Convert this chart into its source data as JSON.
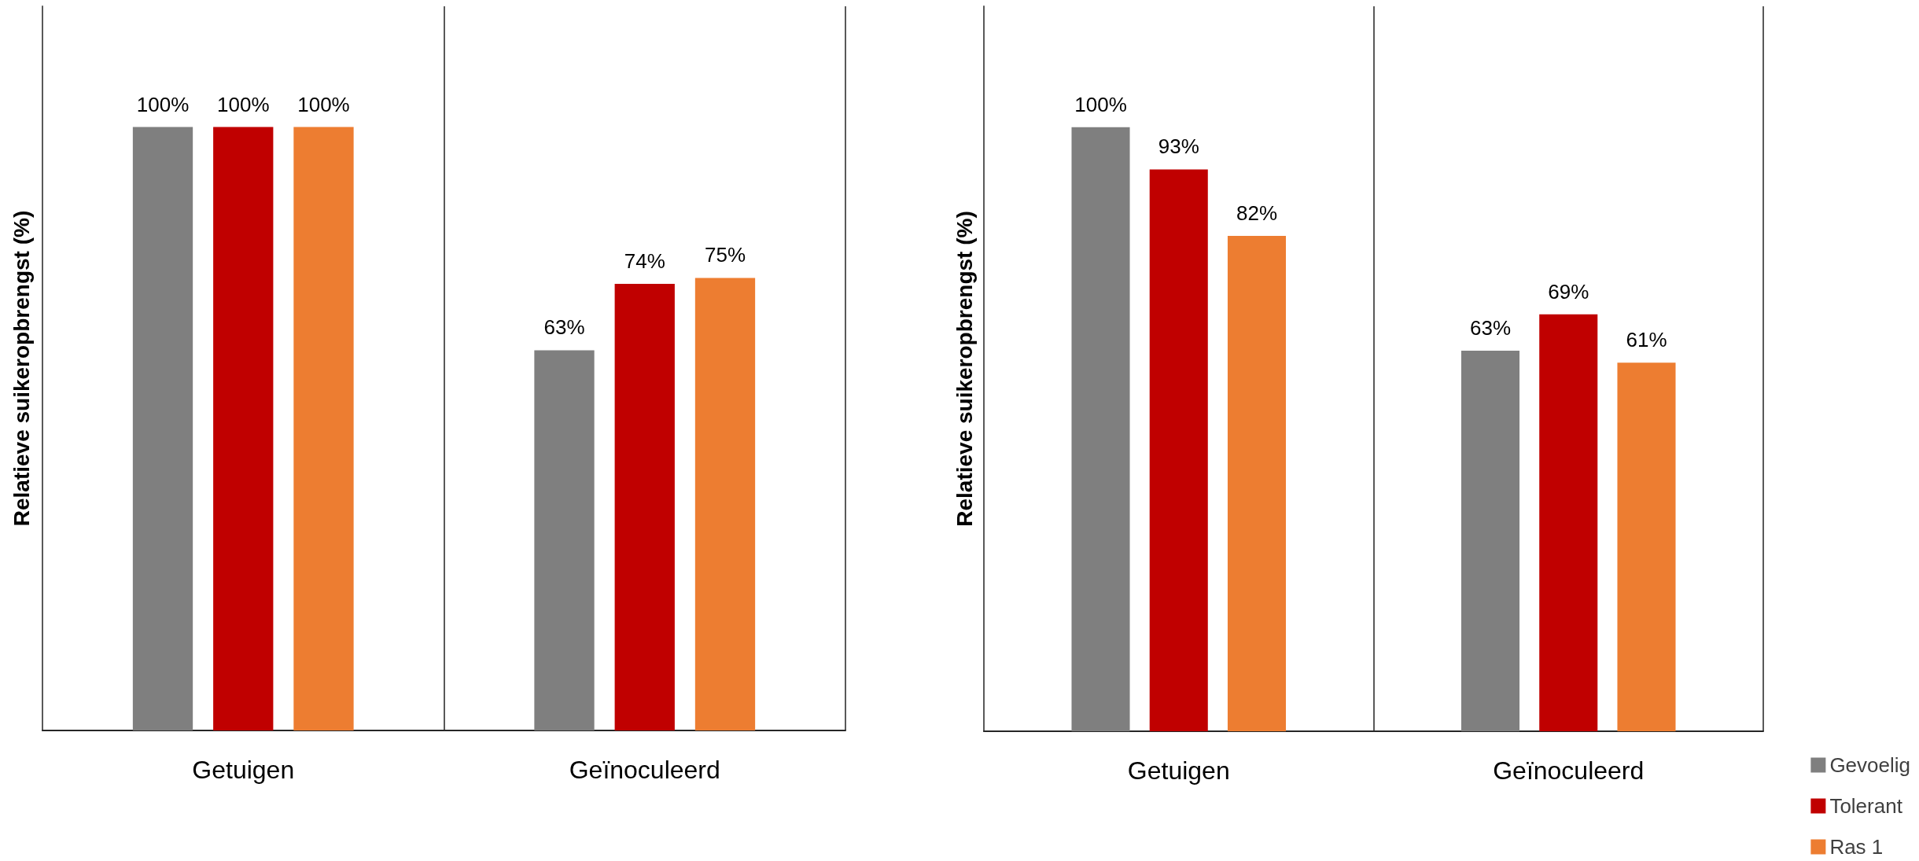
{
  "chart_data": [
    {
      "type": "bar",
      "ylabel": "Relatieve suikeropbrengst (%)",
      "categories": [
        "Getuigen",
        "Geïnoculeerd"
      ],
      "series": [
        {
          "color": "#7f7f7f",
          "values": [
            100,
            63
          ],
          "value_labels": [
            "100%",
            "63%"
          ]
        },
        {
          "color": "#c00000",
          "values": [
            100,
            74
          ],
          "value_labels": [
            "100%",
            "74%"
          ]
        },
        {
          "color": "#ed7d31",
          "values": [
            100,
            75
          ],
          "value_labels": [
            "100%",
            "75%"
          ]
        }
      ],
      "ylim": [
        0,
        120
      ],
      "tick_labels": "x",
      "grid": "x"
    },
    {
      "type": "bar",
      "ylabel": "Relatieve suikeropbrengst (%)",
      "categories": [
        "Getuigen",
        "Geïnoculeerd"
      ],
      "series": [
        {
          "name": "Gevoelig",
          "color": "#7f7f7f",
          "values": [
            100,
            63
          ],
          "value_labels": [
            "100%",
            "63%"
          ]
        },
        {
          "name": "Tolerant",
          "color": "#c00000",
          "values": [
            93,
            69
          ],
          "value_labels": [
            "93%",
            "69%"
          ]
        },
        {
          "name": "Ras 1",
          "color": "#ed7d31",
          "values": [
            82,
            61
          ],
          "value_labels": [
            "82%",
            "61%"
          ]
        }
      ],
      "ylim": [
        0,
        120
      ],
      "tick_labels": "x",
      "grid": "x",
      "legend": "bottom right"
    }
  ]
}
